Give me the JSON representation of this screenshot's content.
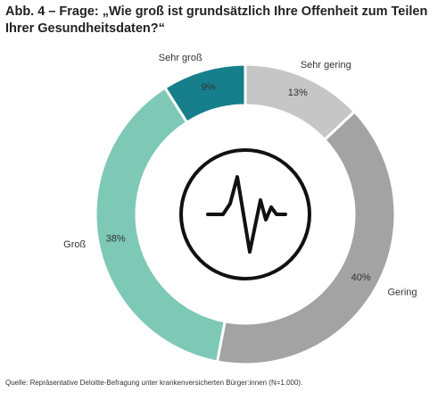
{
  "chart_data": {
    "type": "donut",
    "title": "Abb. 4 – Frage: „Wie groß ist grundsätzlich Ihre Offenheit zum Teilen Ihrer Gesundheitsdaten?“",
    "categories": [
      "Sehr gering",
      "Gering",
      "Groß",
      "Sehr groß"
    ],
    "values": [
      13,
      40,
      38,
      9
    ],
    "value_labels": [
      "13%",
      "40%",
      "38%",
      "9%"
    ],
    "colors": [
      "#c6c6c6",
      "#a3a3a3",
      "#7ec8b6",
      "#167f8b"
    ],
    "source": "Quelle: Repräsentative Deloitte-Befragung unter krankenversicherten Bürger:innen (N=1.000)."
  }
}
